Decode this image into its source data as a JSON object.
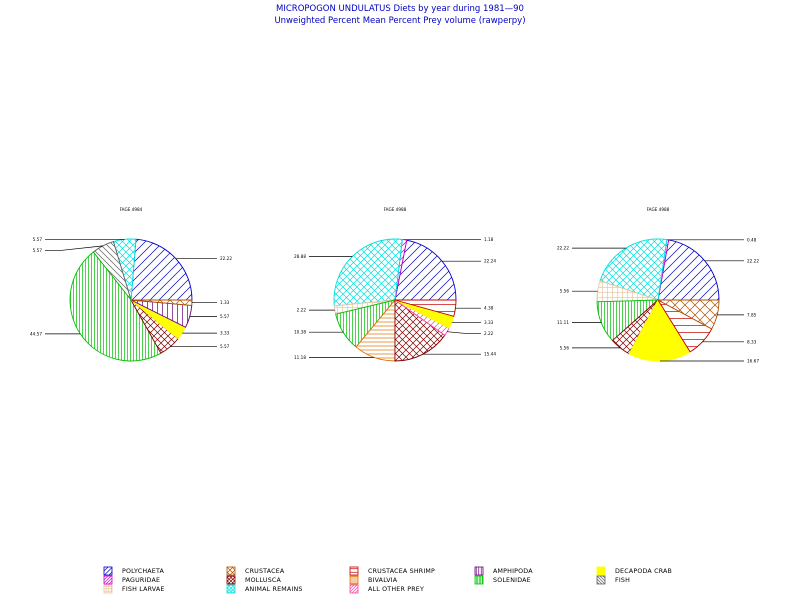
{
  "title": "MICROPOGON UNDULATUS Diets by year during 1981—90",
  "subtitle": "Unweighted Percent Mean Percent Prey  volume (rawperpy)",
  "colors": {
    "title": "#0000c0",
    "polychaeta": "#0000c8",
    "crustacea": "#b05000",
    "crustacea_shrimp": "#c00000",
    "amphipoda": "#6a0080",
    "decapoda_crab": "#ffff00",
    "paguridae": "#d000d0",
    "mollusca": "#800000",
    "bivalvia": "#e07000",
    "all_other_prey": "#ff40a0",
    "fish_larvae": "#e8c8a0",
    "animal_remains": "#00e0e0",
    "solenidae": "#00c000",
    "fish": "#606060"
  },
  "legend": [
    {
      "key": "polychaeta",
      "label": "POLYCHAETA",
      "icon": "diag-up-hatch"
    },
    {
      "key": "crustacea",
      "label": "CRUSTACEA",
      "icon": "cross-diag-hatch"
    },
    {
      "key": "crustacea_shrimp",
      "label": "CRUSTACEA SHRIMP",
      "icon": "horizontal-hatch"
    },
    {
      "key": "amphipoda",
      "label": "AMPHIPODA",
      "icon": "vertical-hatch"
    },
    {
      "key": "decapoda_crab",
      "label": "DECAPODA CRAB",
      "icon": "solid"
    },
    {
      "key": "paguridae",
      "label": "PAGURIDAE",
      "icon": "diag-up-hatch"
    },
    {
      "key": "mollusca",
      "label": "MOLLUSCA",
      "icon": "cross-diag-hatch"
    },
    {
      "key": "bivalvia",
      "label": "BIVALVIA",
      "icon": "horizontal-hatch"
    },
    {
      "key": "solenidae",
      "label": "SOLENIDAE",
      "icon": "vertical-hatch"
    },
    {
      "key": "fish",
      "label": "FISH",
      "icon": "diag-down-hatch"
    },
    {
      "key": "fish_larvae",
      "label": "FISH LARVAE",
      "icon": "grid-hatch"
    },
    {
      "key": "animal_remains",
      "label": "ANIMAL REMAINS",
      "icon": "cross-diag-hatch"
    },
    {
      "key": "all_other_prey",
      "label": "ALL OTHER PREY",
      "icon": "diag-up-hatch"
    }
  ],
  "chart_data": [
    {
      "type": "pie",
      "title": "FAGE 4984",
      "slices": [
        {
          "category": "polychaeta",
          "value": 22.22,
          "label": "22.22"
        },
        {
          "category": "animal_remains",
          "value": 5.57,
          "label": "5.57"
        },
        {
          "category": "fish",
          "value": 5.57,
          "label": "5.57"
        },
        {
          "category": "solenidae",
          "value": 44.57,
          "label": "44.57"
        },
        {
          "category": "mollusca",
          "value": 5.57,
          "label": "5.57"
        },
        {
          "category": "decapoda_crab",
          "value": 3.33,
          "label": "3.33"
        },
        {
          "category": "amphipoda",
          "value": 5.57,
          "label": "5.57"
        },
        {
          "category": "crustacea",
          "value": 1.33,
          "label": "1.33"
        }
      ]
    },
    {
      "type": "pie",
      "title": "FAGE 4988",
      "slices": [
        {
          "category": "polychaeta",
          "value": 22.24,
          "label": "22.24"
        },
        {
          "category": "paguridae",
          "value": 1.18,
          "label": "1.18"
        },
        {
          "category": "animal_remains",
          "value": 28.88,
          "label": "28.88"
        },
        {
          "category": "fish_larvae",
          "value": 2.22,
          "label": "2.22"
        },
        {
          "category": "solenidae",
          "value": 10.38,
          "label": "10.38"
        },
        {
          "category": "bivalvia",
          "value": 11.18,
          "label": "11.18"
        },
        {
          "category": "mollusca",
          "value": 15.44,
          "label": "15.44"
        },
        {
          "category": "all_other_prey",
          "value": 2.22,
          "label": "2.22"
        },
        {
          "category": "decapoda_crab",
          "value": 3.33,
          "label": "3.33"
        },
        {
          "category": "crustacea_shrimp",
          "value": 4.38,
          "label": "4.38"
        }
      ]
    },
    {
      "type": "pie",
      "title": "FAGE 4988",
      "slices": [
        {
          "category": "polychaeta",
          "value": 22.22,
          "label": "22.22"
        },
        {
          "category": "paguridae",
          "value": 0.48,
          "label": "0.48"
        },
        {
          "category": "animal_remains",
          "value": 22.22,
          "label": "22.22"
        },
        {
          "category": "fish_larvae",
          "value": 5.56,
          "label": "5.56"
        },
        {
          "category": "solenidae",
          "value": 11.11,
          "label": "11.11"
        },
        {
          "category": "mollusca",
          "value": 5.56,
          "label": "5.56"
        },
        {
          "category": "decapoda_crab",
          "value": 16.67,
          "label": "16.67"
        },
        {
          "category": "crustacea_shrimp",
          "value": 8.33,
          "label": "8.33"
        },
        {
          "category": "crustacea",
          "value": 7.85,
          "label": "7.85"
        }
      ]
    }
  ]
}
